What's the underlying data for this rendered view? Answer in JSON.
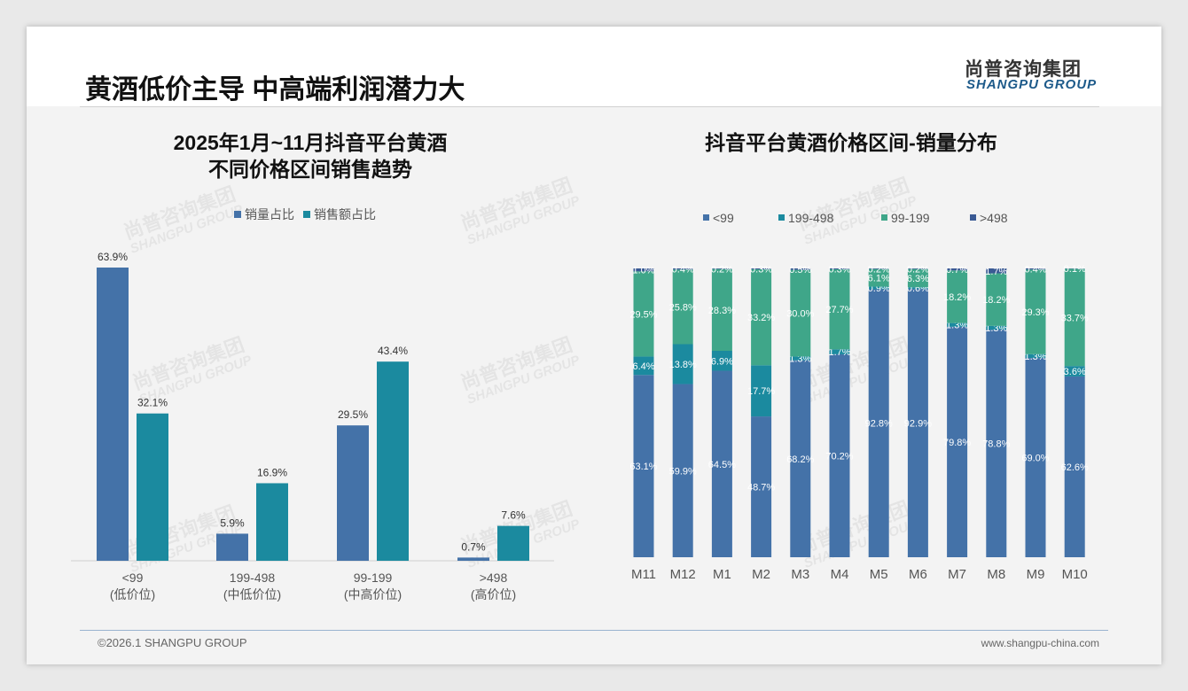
{
  "header": {
    "title": "黄酒低价主导 中高端利润潜力大",
    "logo_cn": "尚普咨询集团",
    "logo_en": "SHANGPU GROUP"
  },
  "footer": {
    "copyright": "©2026.1 SHANGPU GROUP",
    "website": "www.shangpu-china.com"
  },
  "colors": {
    "blue": "#4472a8",
    "teal": "#1b8a9f",
    "green": "#3fa689",
    "dark": "#3a5a94"
  },
  "chart_data": [
    {
      "type": "bar",
      "title_line1": "2025年1月~11月抖音平台黄酒",
      "title_line2": "不同价格区间销售趋势",
      "categories": [
        "<99",
        "199-498",
        "99-199",
        ">498"
      ],
      "category_sublabels": [
        "(低价位)",
        "(中低价位)",
        "(中高价位)",
        "(高价位)"
      ],
      "series": [
        {
          "name": "销量占比",
          "values": [
            63.9,
            5.9,
            29.5,
            0.7
          ],
          "color": "#4472a8"
        },
        {
          "name": "销售额占比",
          "values": [
            32.1,
            16.9,
            43.4,
            7.6
          ],
          "color": "#1b8a9f"
        }
      ],
      "unit": "%",
      "legend": "top",
      "ylim": [
        0,
        70
      ]
    },
    {
      "type": "stacked_bar",
      "title": "抖音平台黄酒价格区间-销量分布",
      "categories": [
        "M11",
        "M12",
        "M1",
        "M2",
        "M3",
        "M4",
        "M5",
        "M6",
        "M7",
        "M8",
        "M9",
        "M10"
      ],
      "series": [
        {
          "name": "<99",
          "color": "#4472a8",
          "values": [
            63.1,
            59.9,
            64.5,
            48.7,
            68.2,
            70.2,
            92.8,
            92.9,
            79.8,
            78.8,
            69.0,
            62.6
          ]
        },
        {
          "name": "199-498",
          "color": "#1b8a9f",
          "values": [
            6.4,
            13.8,
            6.9,
            17.7,
            1.3,
            1.7,
            0.9,
            0.6,
            1.3,
            1.3,
            1.3,
            3.6
          ]
        },
        {
          "name": "99-199",
          "color": "#3fa689",
          "values": [
            29.5,
            25.8,
            28.3,
            33.2,
            30.0,
            27.7,
            6.1,
            6.3,
            18.2,
            18.2,
            29.3,
            33.7
          ]
        },
        {
          "name": ">498",
          "color": "#3a5a94",
          "values": [
            1.0,
            0.4,
            0.2,
            0.3,
            0.5,
            0.3,
            0.2,
            0.2,
            0.7,
            1.7,
            0.4,
            0.1
          ]
        }
      ],
      "unit": "%",
      "legend": "top",
      "ylim": [
        0,
        100
      ]
    }
  ]
}
